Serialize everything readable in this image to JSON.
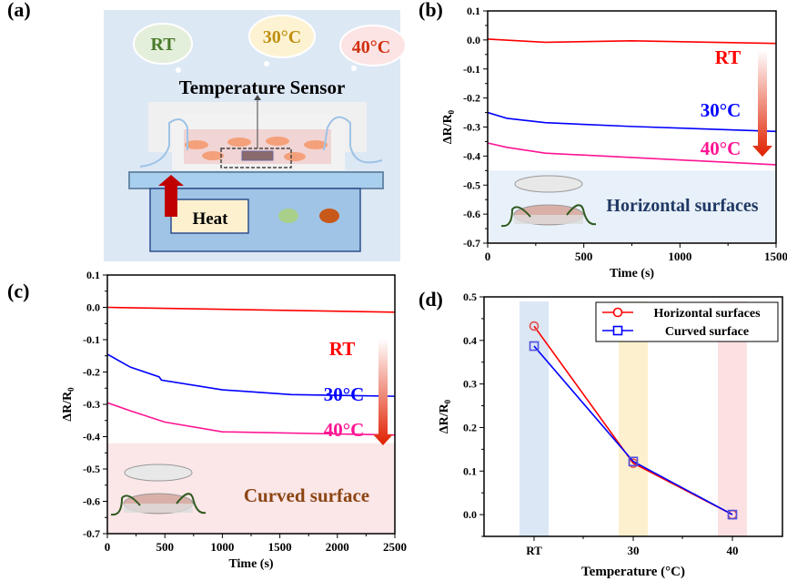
{
  "panel_labels": [
    "(a)",
    "(b)",
    "(c)",
    "(d)"
  ],
  "diagram": {
    "bubbles": [
      "RT",
      "30°C",
      "40°C"
    ],
    "sensor_label": "Temperature Sensor",
    "heat_label": "Heat"
  },
  "colors": {
    "rt": "#ff0000",
    "t30": "#0000ff",
    "t40": "#ff1493",
    "horizontal_bg": "#e8f0f9",
    "curved_bg": "#fbe6e8"
  },
  "chart_data": [
    {
      "type": "line",
      "panel": "(b)",
      "xlabel": "Time (s)",
      "ylabel": "ΔR/R0",
      "xlim": [
        0,
        1500
      ],
      "ylim": [
        -0.7,
        0.1
      ],
      "xticks": [
        0,
        500,
        1000,
        1500
      ],
      "xtick_labels": [
        "0",
        "500",
        "1000",
        "1500"
      ],
      "yticks": [
        0.1,
        0.0,
        -0.1,
        -0.2,
        -0.3,
        -0.4,
        -0.5,
        -0.6,
        -0.7
      ],
      "ytick_labels": [
        "0.1",
        "0.0",
        "-0.1",
        "-0.2",
        "-0.3",
        "-0.4",
        "-0.5",
        "-0.6",
        "-0.7"
      ],
      "series": [
        {
          "name": "RT",
          "color": "#ff0000",
          "points": [
            [
              0,
              0.003
            ],
            [
              300,
              -0.008
            ],
            [
              750,
              -0.003
            ],
            [
              1500,
              -0.012
            ]
          ]
        },
        {
          "name": "30°C",
          "color": "#0000ff",
          "points": [
            [
              0,
              -0.25
            ],
            [
              100,
              -0.27
            ],
            [
              300,
              -0.285
            ],
            [
              750,
              -0.298
            ],
            [
              1500,
              -0.315
            ]
          ]
        },
        {
          "name": "40°C",
          "color": "#ff1493",
          "points": [
            [
              0,
              -0.355
            ],
            [
              100,
              -0.37
            ],
            [
              300,
              -0.39
            ],
            [
              750,
              -0.405
            ],
            [
              1500,
              -0.43
            ]
          ]
        }
      ],
      "shade_below": -0.45,
      "annotation": "Horizontal surfaces"
    },
    {
      "type": "line",
      "panel": "(c)",
      "xlabel": "Time (s)",
      "ylabel": "ΔR/R0",
      "xlim": [
        0,
        2500
      ],
      "ylim": [
        -0.7,
        0.1
      ],
      "xticks": [
        0,
        500,
        1000,
        1500,
        2000,
        2500
      ],
      "xtick_labels": [
        "0",
        "500",
        "1000",
        "1500",
        "2000",
        "2500"
      ],
      "yticks": [
        0.1,
        0.0,
        -0.1,
        -0.2,
        -0.3,
        -0.4,
        -0.5,
        -0.6,
        -0.7
      ],
      "ytick_labels": [
        "0.1",
        "0.0",
        "-0.1",
        "-0.2",
        "-0.3",
        "-0.4",
        "-0.5",
        "-0.6",
        "-0.7"
      ],
      "series": [
        {
          "name": "RT",
          "color": "#ff0000",
          "points": [
            [
              0,
              0
            ],
            [
              2500,
              -0.015
            ]
          ]
        },
        {
          "name": "30°C",
          "color": "#0000ff",
          "points": [
            [
              0,
              -0.145
            ],
            [
              200,
              -0.185
            ],
            [
              450,
              -0.215
            ],
            [
              470,
              -0.225
            ],
            [
              1000,
              -0.255
            ],
            [
              1600,
              -0.27
            ],
            [
              2500,
              -0.275
            ]
          ]
        },
        {
          "name": "40°C",
          "color": "#ff1493",
          "points": [
            [
              0,
              -0.295
            ],
            [
              200,
              -0.32
            ],
            [
              500,
              -0.355
            ],
            [
              1000,
              -0.385
            ],
            [
              2500,
              -0.395
            ]
          ]
        }
      ],
      "shade_below": -0.42,
      "annotation": "Curved surface"
    },
    {
      "type": "line",
      "panel": "(d)",
      "xlabel": "Temperature (°C)",
      "ylabel": "ΔR/R0",
      "categories": [
        "RT",
        "30",
        "40"
      ],
      "ylim": [
        -0.05,
        0.5
      ],
      "yticks": [
        0.5,
        0.4,
        0.3,
        0.2,
        0.1,
        0.0
      ],
      "ytick_labels": [
        "0.5",
        "0.4",
        "0.3",
        "0.2",
        "0.1",
        "0.0"
      ],
      "legend": "top-right",
      "series": [
        {
          "name": "Horizontal surfaces",
          "color": "#ff0000",
          "marker": "circle",
          "values": [
            0.433,
            0.118,
            0.0
          ]
        },
        {
          "name": "Curved surface",
          "color": "#0000ff",
          "marker": "square",
          "values": [
            0.387,
            0.122,
            0.0
          ]
        }
      ],
      "band_colors": [
        "#dbe7f4",
        "#fdf0cf",
        "#fbe1e1"
      ]
    }
  ]
}
